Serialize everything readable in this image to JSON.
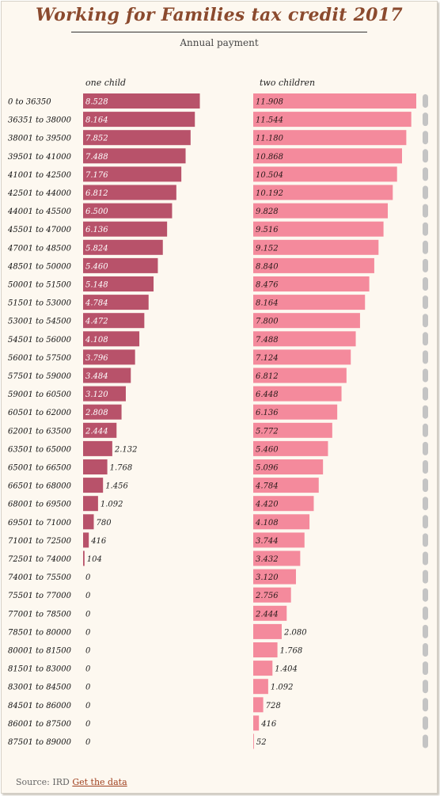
{
  "chart_data": {
    "type": "bar",
    "orientation": "horizontal",
    "title": "Working for Families tax credit 2017",
    "subtitle": "Annual payment",
    "categories": [
      "0 to 36350",
      "36351 to 38000",
      "38001 to 39500",
      "39501 to 41000",
      "41001 to 42500",
      "42501 to 44000",
      "44001 to 45500",
      "45501 to 47000",
      "47001 to 48500",
      "48501 to 50000",
      "50001 to 51500",
      "51501 to 53000",
      "53001 to 54500",
      "54501 to 56000",
      "56001 to 57500",
      "57501 to 59000",
      "59001 to 60500",
      "60501 to 62000",
      "62001 to 63500",
      "63501 to 65000",
      "65001 to 66500",
      "66501 to 68000",
      "68001 to 69500",
      "69501 to 71000",
      "71001 to 72500",
      "72501 to 74000",
      "74001 to 75500",
      "75501 to 77000",
      "77001 to 78500",
      "78501 to 80000",
      "80001 to 81500",
      "81501 to 83000",
      "83001 to 84500",
      "84501 to 86000",
      "86001 to 87500",
      "87501 to 89000"
    ],
    "series": [
      {
        "name": "one child",
        "color": "#b8526a",
        "values": [
          8528,
          8164,
          7852,
          7488,
          7176,
          6812,
          6500,
          6136,
          5824,
          5460,
          5148,
          4784,
          4472,
          4108,
          3796,
          3484,
          3120,
          2808,
          2444,
          2132,
          1768,
          1456,
          1092,
          780,
          416,
          104,
          0,
          0,
          0,
          0,
          0,
          0,
          0,
          0,
          0,
          0
        ]
      },
      {
        "name": "two children",
        "color": "#f48a9c",
        "values": [
          11908,
          11544,
          11180,
          10868,
          10504,
          10192,
          9828,
          9516,
          9152,
          8840,
          8476,
          8164,
          7800,
          7488,
          7124,
          6812,
          6448,
          6136,
          5772,
          5460,
          5096,
          4784,
          4420,
          4108,
          3744,
          3432,
          3120,
          2756,
          2444,
          2080,
          1768,
          1404,
          1092,
          728,
          416,
          52
        ]
      }
    ],
    "xlim": [
      0,
      11908
    ],
    "grid": false,
    "legend": "column headers"
  },
  "footer": {
    "source_label": "Source: IRD",
    "link_label": "Get the data"
  }
}
